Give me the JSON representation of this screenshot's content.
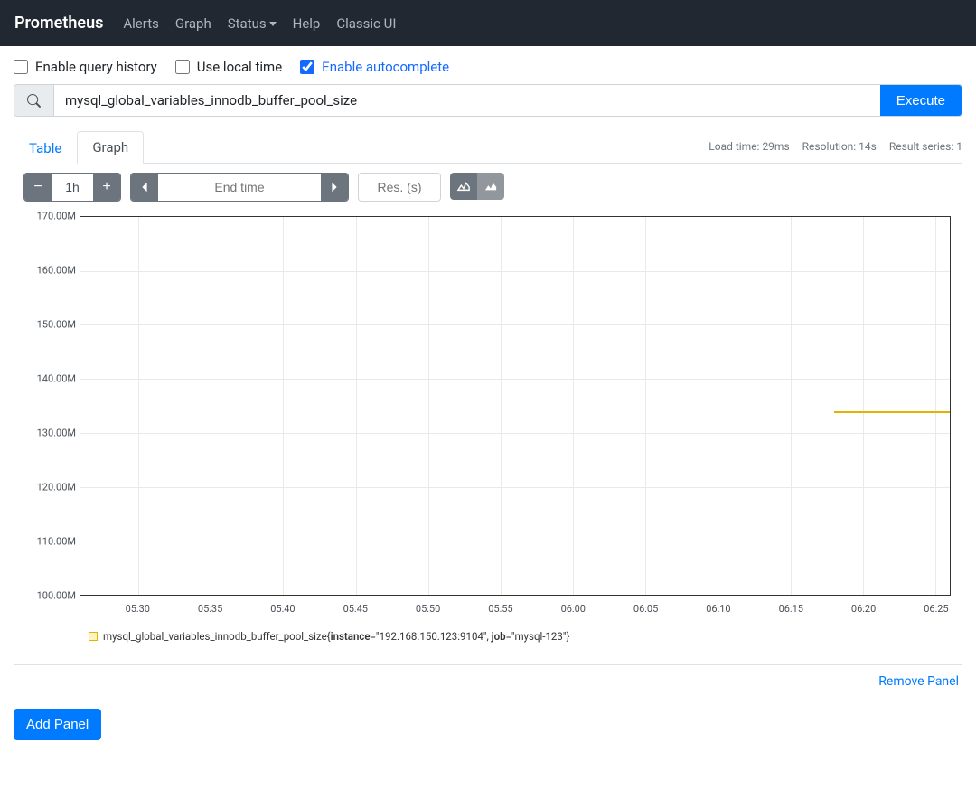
{
  "navbar": {
    "brand": "Prometheus",
    "links": [
      "Alerts",
      "Graph",
      "Status",
      "Help",
      "Classic UI"
    ],
    "dropdown_index": 2
  },
  "options": {
    "enable_history_label": "Enable query history",
    "enable_history_checked": false,
    "local_time_label": "Use local time",
    "local_time_checked": false,
    "autocomplete_label": "Enable autocomplete",
    "autocomplete_checked": true
  },
  "query": {
    "value": "mysql_global_variables_innodb_buffer_pool_size",
    "execute_label": "Execute"
  },
  "tabs": {
    "table_label": "Table",
    "graph_label": "Graph",
    "active": "graph"
  },
  "stats": {
    "load_time": "Load time: 29ms",
    "resolution": "Resolution: 14s",
    "result_series": "Result series: 1"
  },
  "controls": {
    "range": "1h",
    "endtime_placeholder": "End time",
    "res_placeholder": "Res. (s)"
  },
  "chart": {
    "type": "line",
    "y_ticks": [
      "170.00M",
      "160.00M",
      "150.00M",
      "140.00M",
      "130.00M",
      "120.00M",
      "110.00M",
      "100.00M"
    ],
    "y_min": 100,
    "y_max": 170,
    "x_ticks": [
      "05:30",
      "05:35",
      "05:40",
      "05:45",
      "05:50",
      "05:55",
      "06:00",
      "06:05",
      "06:10",
      "06:15",
      "06:20",
      "06:25"
    ],
    "x_min_minutes": 326,
    "x_max_minutes": 386,
    "gridline_color": "#e9e9e9",
    "axis_color": "#333333",
    "background_color": "#ffffff",
    "tick_fontsize": 11,
    "series": [
      {
        "color": "#e0b400",
        "value": 134,
        "x_start_minutes": 378,
        "x_end_minutes": 386
      }
    ]
  },
  "legend": {
    "swatch_color": "#e0b400",
    "swatch_bg": "#fff3c4",
    "metric": "mysql_global_variables_innodb_buffer_pool_size",
    "label_instance_key": "instance",
    "label_instance_val": "\"192.168.150.123:9104\"",
    "label_job_key": "job",
    "label_job_val": "\"mysql-123\""
  },
  "footer": {
    "remove_label": "Remove Panel",
    "add_label": "Add Panel"
  },
  "colors": {
    "primary": "#007bff",
    "navbar_bg": "#222831"
  }
}
